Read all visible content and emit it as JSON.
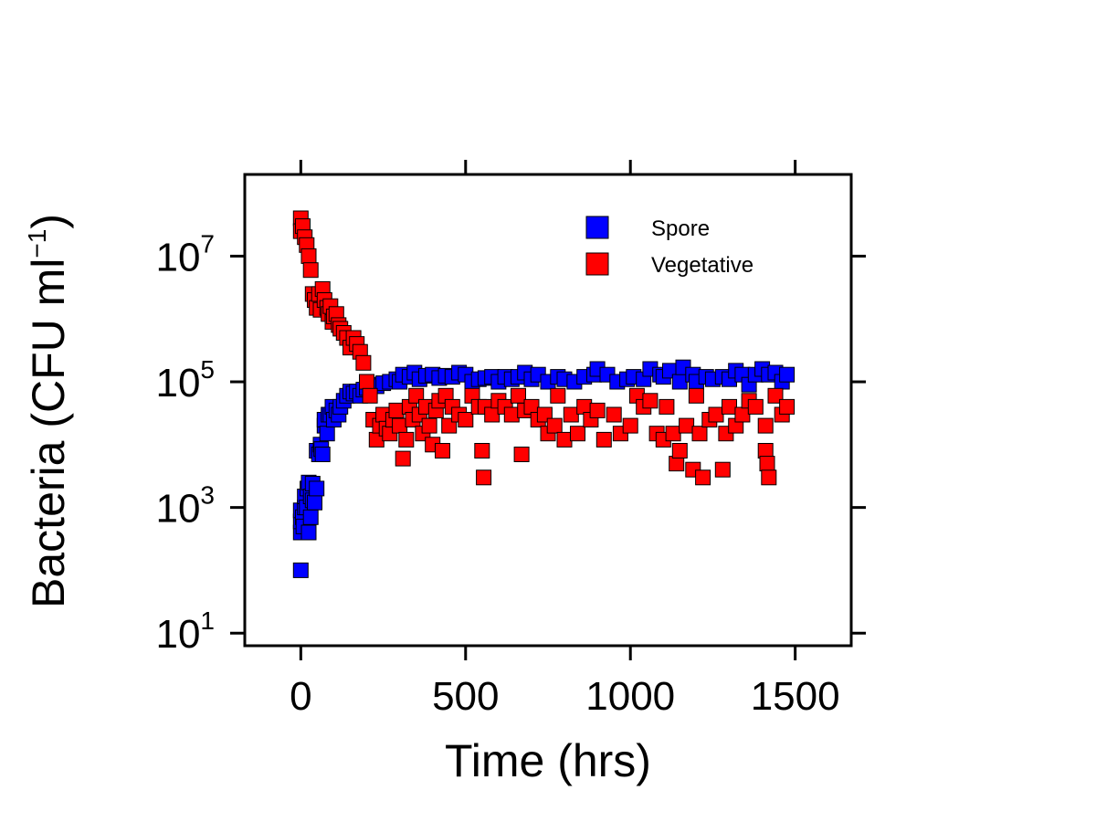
{
  "chart_data": {
    "type": "scatter",
    "xlabel": "Time (hrs)",
    "ylabel_text": "Bacteria (CFU ml",
    "ylabel_exp": "−1",
    "ylabel_close": ")",
    "xlim": [
      -170,
      1670
    ],
    "ylim_log10": [
      0.8,
      8.3
    ],
    "y_scale": "log10",
    "grid": false,
    "legend_position": "top-right",
    "x_ticks": [
      {
        "value": 0,
        "label": "0"
      },
      {
        "value": 500,
        "label": "500"
      },
      {
        "value": 1000,
        "label": "1000"
      },
      {
        "value": 1500,
        "label": "1500"
      }
    ],
    "y_ticks": [
      {
        "value": 10,
        "base": "10",
        "exp": "1"
      },
      {
        "value": 1000,
        "base": "10",
        "exp": "3"
      },
      {
        "value": 100000,
        "base": "10",
        "exp": "5"
      },
      {
        "value": 10000000,
        "base": "10",
        "exp": "7"
      }
    ],
    "series": [
      {
        "name": "Spore",
        "color": "#0000ff",
        "points": [
          [
            0,
            100
          ],
          [
            0,
            400
          ],
          [
            0,
            600
          ],
          [
            0,
            900
          ],
          [
            6,
            700
          ],
          [
            8,
            500
          ],
          [
            12,
            1000
          ],
          [
            12,
            1500
          ],
          [
            18,
            1000
          ],
          [
            20,
            2000
          ],
          [
            24,
            2500
          ],
          [
            24,
            400
          ],
          [
            30,
            700
          ],
          [
            30,
            1500
          ],
          [
            36,
            1300
          ],
          [
            36,
            2400
          ],
          [
            42,
            1200
          ],
          [
            48,
            2000
          ],
          [
            48,
            8000
          ],
          [
            55,
            7000
          ],
          [
            60,
            10000
          ],
          [
            62,
            8500
          ],
          [
            66,
            7000
          ],
          [
            72,
            20000
          ],
          [
            72,
            25000
          ],
          [
            80,
            15000
          ],
          [
            84,
            30000
          ],
          [
            90,
            30000
          ],
          [
            96,
            40000
          ],
          [
            100,
            25000
          ],
          [
            108,
            35000
          ],
          [
            115,
            30000
          ],
          [
            120,
            40000
          ],
          [
            130,
            50000
          ],
          [
            140,
            60000
          ],
          [
            150,
            70000
          ],
          [
            160,
            65000
          ],
          [
            170,
            70000
          ],
          [
            180,
            60000
          ],
          [
            190,
            75000
          ],
          [
            200,
            80000
          ],
          [
            215,
            90000
          ],
          [
            230,
            85000
          ],
          [
            250,
            95000
          ],
          [
            270,
            100000
          ],
          [
            290,
            110000
          ],
          [
            300,
            100000
          ],
          [
            310,
            130000
          ],
          [
            330,
            120000
          ],
          [
            345,
            140000
          ],
          [
            360,
            110000
          ],
          [
            380,
            125000
          ],
          [
            400,
            130000
          ],
          [
            420,
            115000
          ],
          [
            440,
            125000
          ],
          [
            460,
            120000
          ],
          [
            480,
            140000
          ],
          [
            500,
            130000
          ],
          [
            520,
            100000
          ],
          [
            540,
            110000
          ],
          [
            560,
            115000
          ],
          [
            580,
            120000
          ],
          [
            600,
            100000
          ],
          [
            620,
            120000
          ],
          [
            640,
            110000
          ],
          [
            660,
            120000
          ],
          [
            680,
            140000
          ],
          [
            700,
            110000
          ],
          [
            720,
            130000
          ],
          [
            750,
            100000
          ],
          [
            780,
            120000
          ],
          [
            800,
            110000
          ],
          [
            830,
            100000
          ],
          [
            860,
            120000
          ],
          [
            890,
            130000
          ],
          [
            900,
            160000
          ],
          [
            930,
            130000
          ],
          [
            960,
            100000
          ],
          [
            990,
            110000
          ],
          [
            1010,
            120000
          ],
          [
            1040,
            110000
          ],
          [
            1060,
            160000
          ],
          [
            1090,
            130000
          ],
          [
            1100,
            120000
          ],
          [
            1120,
            150000
          ],
          [
            1150,
            100000
          ],
          [
            1160,
            170000
          ],
          [
            1190,
            130000
          ],
          [
            1200,
            100000
          ],
          [
            1230,
            120000
          ],
          [
            1250,
            110000
          ],
          [
            1280,
            120000
          ],
          [
            1300,
            110000
          ],
          [
            1320,
            150000
          ],
          [
            1340,
            130000
          ],
          [
            1360,
            90000
          ],
          [
            1380,
            130000
          ],
          [
            1400,
            160000
          ],
          [
            1420,
            130000
          ],
          [
            1440,
            140000
          ],
          [
            1460,
            100000
          ],
          [
            1475,
            130000
          ]
        ]
      },
      {
        "name": "Vegetative",
        "color": "#ff0000",
        "points": [
          [
            0,
            40000000
          ],
          [
            0,
            25000000
          ],
          [
            6,
            30000000
          ],
          [
            12,
            20000000
          ],
          [
            18,
            15000000
          ],
          [
            24,
            10000000
          ],
          [
            30,
            6000000
          ],
          [
            36,
            2500000
          ],
          [
            42,
            2000000
          ],
          [
            48,
            1500000
          ],
          [
            55,
            2500000
          ],
          [
            60,
            1400000
          ],
          [
            66,
            3000000
          ],
          [
            72,
            2000000
          ],
          [
            80,
            1500000
          ],
          [
            84,
            1200000
          ],
          [
            90,
            1600000
          ],
          [
            96,
            900000
          ],
          [
            100,
            1100000
          ],
          [
            108,
            1200000
          ],
          [
            115,
            800000
          ],
          [
            120,
            700000
          ],
          [
            130,
            600000
          ],
          [
            140,
            500000
          ],
          [
            150,
            350000
          ],
          [
            160,
            500000
          ],
          [
            170,
            400000
          ],
          [
            180,
            300000
          ],
          [
            190,
            200000
          ],
          [
            200,
            100000
          ],
          [
            210,
            60000
          ],
          [
            220,
            25000
          ],
          [
            230,
            12000
          ],
          [
            240,
            20000
          ],
          [
            250,
            30000
          ],
          [
            260,
            18000
          ],
          [
            270,
            15000
          ],
          [
            280,
            25000
          ],
          [
            290,
            35000
          ],
          [
            300,
            20000
          ],
          [
            310,
            6000
          ],
          [
            320,
            12000
          ],
          [
            330,
            40000
          ],
          [
            340,
            25000
          ],
          [
            350,
            60000
          ],
          [
            360,
            30000
          ],
          [
            370,
            15000
          ],
          [
            380,
            40000
          ],
          [
            390,
            20000
          ],
          [
            400,
            10000
          ],
          [
            410,
            35000
          ],
          [
            420,
            50000
          ],
          [
            430,
            8000
          ],
          [
            440,
            60000
          ],
          [
            450,
            20000
          ],
          [
            460,
            40000
          ],
          [
            480,
            30000
          ],
          [
            500,
            25000
          ],
          [
            520,
            60000
          ],
          [
            540,
            40000
          ],
          [
            550,
            8000
          ],
          [
            555,
            3000
          ],
          [
            560,
            40000
          ],
          [
            580,
            30000
          ],
          [
            600,
            50000
          ],
          [
            620,
            40000
          ],
          [
            640,
            30000
          ],
          [
            660,
            60000
          ],
          [
            670,
            7000
          ],
          [
            680,
            35000
          ],
          [
            700,
            40000
          ],
          [
            720,
            25000
          ],
          [
            740,
            30000
          ],
          [
            750,
            15000
          ],
          [
            770,
            20000
          ],
          [
            780,
            60000
          ],
          [
            800,
            12000
          ],
          [
            820,
            30000
          ],
          [
            840,
            15000
          ],
          [
            860,
            40000
          ],
          [
            880,
            25000
          ],
          [
            900,
            35000
          ],
          [
            920,
            12000
          ],
          [
            950,
            30000
          ],
          [
            970,
            15000
          ],
          [
            1000,
            20000
          ],
          [
            1020,
            60000
          ],
          [
            1040,
            40000
          ],
          [
            1060,
            50000
          ],
          [
            1080,
            15000
          ],
          [
            1100,
            12000
          ],
          [
            1110,
            40000
          ],
          [
            1130,
            15000
          ],
          [
            1140,
            5000
          ],
          [
            1150,
            8000
          ],
          [
            1170,
            20000
          ],
          [
            1190,
            4000
          ],
          [
            1200,
            60000
          ],
          [
            1210,
            15000
          ],
          [
            1220,
            3000
          ],
          [
            1240,
            25000
          ],
          [
            1260,
            30000
          ],
          [
            1280,
            4000
          ],
          [
            1290,
            15000
          ],
          [
            1300,
            40000
          ],
          [
            1320,
            20000
          ],
          [
            1340,
            30000
          ],
          [
            1360,
            50000
          ],
          [
            1380,
            40000
          ],
          [
            1410,
            20000
          ],
          [
            1410,
            8000
          ],
          [
            1415,
            5000
          ],
          [
            1420,
            3000
          ],
          [
            1440,
            60000
          ],
          [
            1460,
            30000
          ],
          [
            1475,
            40000
          ]
        ]
      }
    ],
    "legend": [
      {
        "name": "Spore",
        "color": "#0000ff"
      },
      {
        "name": "Vegetative",
        "color": "#ff0000"
      }
    ]
  }
}
